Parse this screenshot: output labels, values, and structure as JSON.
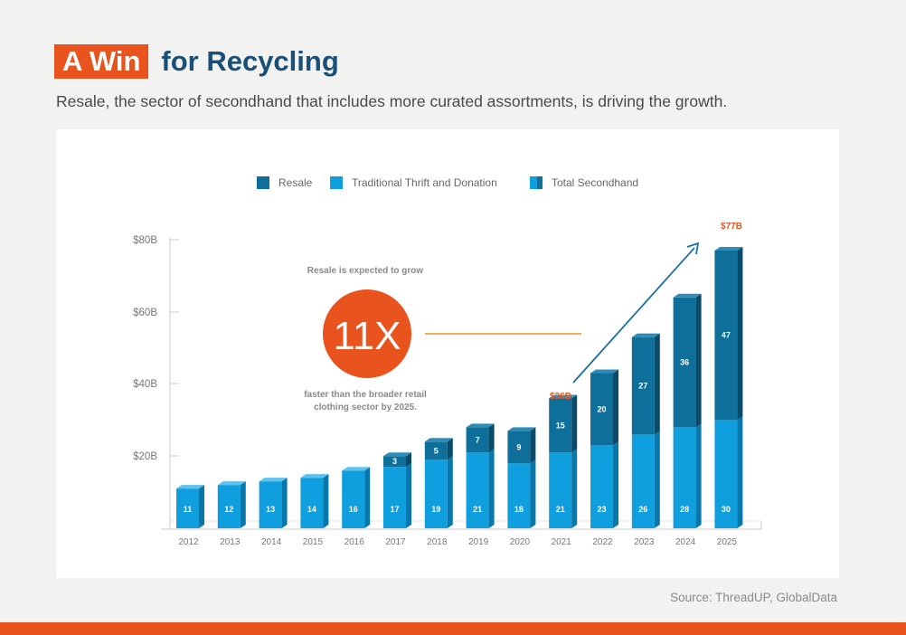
{
  "header": {
    "title_highlight": "A Win",
    "title_rest": "for Recycling",
    "subtitle": "Resale, the sector of secondhand that includes more curated assortments, is driving the growth."
  },
  "source": "Source: ThreadUP, GlobalData",
  "colors": {
    "accent": "#e8531e",
    "title_blue": "#1a4f78",
    "resale": "#0e6f9a",
    "thrift": "#0f9ede"
  },
  "chart_data": {
    "type": "bar",
    "stacked": true,
    "title": "",
    "categories": [
      "2012",
      "2013",
      "2014",
      "2015",
      "2016",
      "2017",
      "2018",
      "2019",
      "2020",
      "2021",
      "2022",
      "2023",
      "2024",
      "2025"
    ],
    "series": [
      {
        "name": "Traditional Thrift and Donation",
        "values": [
          11,
          12,
          13,
          14,
          16,
          17,
          19,
          21,
          18,
          21,
          23,
          26,
          28,
          30
        ],
        "labels": [
          "11",
          "12",
          "13",
          "14",
          "16",
          "17",
          "19",
          "21",
          "18",
          "21",
          "23",
          "26",
          "28",
          "30"
        ]
      },
      {
        "name": "Resale",
        "values": [
          0,
          0,
          0,
          0,
          0,
          3,
          5,
          7,
          9,
          15,
          20,
          27,
          36,
          47
        ],
        "labels": [
          "",
          "",
          "",
          "",
          "",
          "3",
          "5",
          "7",
          "9",
          "15",
          "20",
          "27",
          "36",
          "47"
        ]
      }
    ],
    "legend": [
      "Resale",
      "Traditional Thrift and Donation",
      "Total Secondhand"
    ],
    "legend_position": "top-center",
    "yticks": [
      "$80B",
      "$60B",
      "$40B",
      "$20B"
    ],
    "ytick_values": [
      80,
      60,
      40,
      20
    ],
    "ylim": [
      0,
      80
    ],
    "grid": false,
    "annotations": {
      "callout_top": "Resale is expected to grow",
      "callout_big": "11X",
      "callout_bottom_1": "faster than the broader retail",
      "callout_bottom_2": "clothing sector by 2025.",
      "label_2021": "$36B",
      "label_2025": "$77B"
    }
  }
}
